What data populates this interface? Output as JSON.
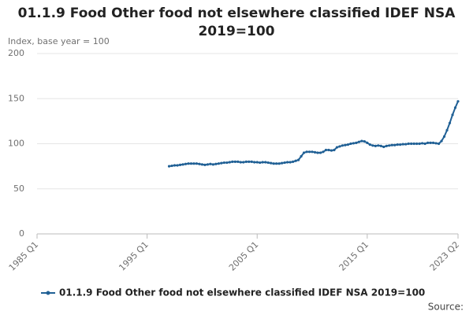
{
  "chart_data": {
    "type": "line",
    "title": "01.1.9 Food Other food not elsewhere classified IDEF NSA 2019=100",
    "y_label": "Index, base year = 100",
    "source": "Source:",
    "categories": [
      "1985 Q1",
      null,
      null,
      null,
      null,
      null,
      null,
      null,
      null,
      null,
      null,
      null,
      null,
      null,
      null,
      null,
      null,
      null,
      null,
      null,
      null,
      null,
      null,
      null,
      null,
      null,
      null,
      null,
      null,
      null,
      null,
      null,
      null,
      null,
      null,
      null,
      null,
      null,
      null,
      null,
      "1995 Q1",
      null,
      null,
      null,
      null,
      null,
      null,
      null,
      null,
      null,
      null,
      null,
      null,
      null,
      null,
      null,
      null,
      null,
      null,
      null,
      null,
      null,
      null,
      null,
      null,
      null,
      null,
      null,
      null,
      null,
      null,
      null,
      null,
      null,
      null,
      null,
      null,
      null,
      null,
      null,
      "2005 Q1",
      null,
      null,
      null,
      null,
      null,
      null,
      null,
      null,
      null,
      null,
      null,
      null,
      null,
      null,
      null,
      null,
      null,
      null,
      null,
      null,
      null,
      null,
      null,
      null,
      null,
      null,
      null,
      null,
      null,
      null,
      null,
      null,
      null,
      null,
      null,
      null,
      null,
      null,
      null,
      "2015 Q1",
      null,
      null,
      null,
      null,
      null,
      null,
      null,
      null,
      null,
      null,
      null,
      null,
      null,
      null,
      null,
      null,
      null,
      null,
      null,
      null,
      null,
      null,
      null,
      null,
      null,
      null,
      null,
      null,
      null,
      null,
      null,
      null,
      "2023 Q2"
    ],
    "series": [
      {
        "name": "01.1.9 Food Other food not elsewhere classified IDEF NSA 2019=100",
        "color": "#206095",
        "values": [
          null,
          null,
          null,
          null,
          null,
          null,
          null,
          null,
          null,
          null,
          null,
          null,
          null,
          null,
          null,
          null,
          null,
          null,
          null,
          null,
          null,
          null,
          null,
          null,
          null,
          null,
          null,
          null,
          null,
          null,
          null,
          null,
          null,
          null,
          null,
          null,
          null,
          null,
          null,
          null,
          null,
          null,
          null,
          null,
          null,
          null,
          null,
          null,
          75,
          75.5,
          76,
          76,
          76.5,
          77,
          77.5,
          78,
          78,
          78,
          78,
          77.5,
          77,
          76.5,
          77,
          77.5,
          77,
          77.5,
          78,
          78.5,
          79,
          79,
          79.5,
          80,
          80,
          80,
          79.5,
          79.5,
          80,
          80,
          80,
          79.5,
          79.5,
          79,
          79.5,
          79.5,
          79,
          78.5,
          78,
          78,
          78,
          78.5,
          79,
          79.5,
          79.5,
          80,
          81,
          82,
          86,
          90,
          91,
          91,
          91,
          90.5,
          90,
          90,
          91,
          93,
          93,
          92.5,
          93,
          96,
          97,
          98,
          98.5,
          99,
          100,
          100.5,
          101,
          102,
          103,
          102.5,
          101,
          99,
          98,
          97.5,
          98,
          97.5,
          96.5,
          97.5,
          98,
          98.5,
          98.5,
          99,
          99,
          99.5,
          99.5,
          100,
          100,
          100,
          100,
          100,
          100.5,
          100,
          101,
          101,
          101,
          100.5,
          100,
          103,
          108,
          115,
          123,
          132,
          140,
          147
        ]
      }
    ],
    "ylim": [
      0,
      200
    ],
    "yticks": [
      0,
      50,
      100,
      150,
      200
    ],
    "grid": true,
    "legend": "bottom"
  }
}
